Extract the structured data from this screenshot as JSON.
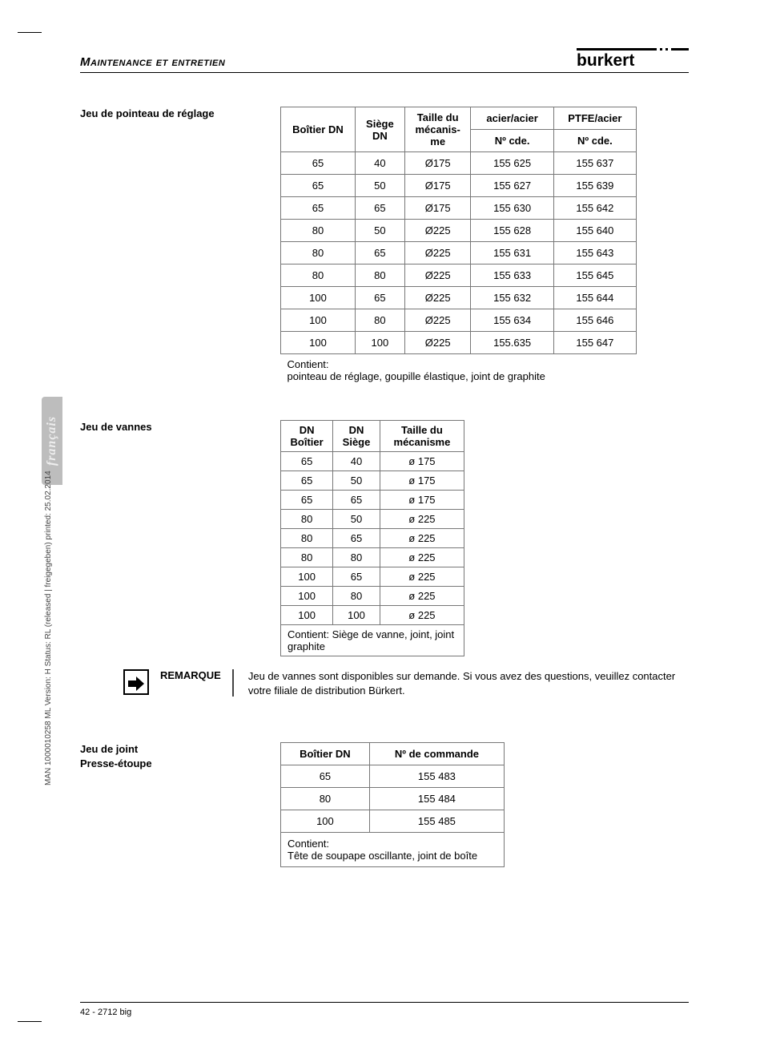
{
  "header": {
    "title": "Maintenance et entretien",
    "logo_text": "burkert"
  },
  "section1": {
    "label": "Jeu de pointeau de réglage",
    "headers_top": [
      "Boîtier DN",
      "Siège DN",
      "Taille du mécanis-me",
      "acier/acier",
      "PTFE/acier"
    ],
    "headers_sub": [
      "Nº cde.",
      "Nº cde."
    ],
    "rows": [
      [
        "65",
        "40",
        "Ø175",
        "155 625",
        "155 637"
      ],
      [
        "65",
        "50",
        "Ø175",
        "155 627",
        "155 639"
      ],
      [
        "65",
        "65",
        "Ø175",
        "155 630",
        "155 642"
      ],
      [
        "80",
        "50",
        "Ø225",
        "155 628",
        "155 640"
      ],
      [
        "80",
        "65",
        "Ø225",
        "155 631",
        "155 643"
      ],
      [
        "80",
        "80",
        "Ø225",
        "155 633",
        "155 645"
      ],
      [
        "100",
        "65",
        "Ø225",
        "155 632",
        "155 644"
      ],
      [
        "100",
        "80",
        "Ø225",
        "155 634",
        "155 646"
      ],
      [
        "100",
        "100",
        "Ø225",
        "155.635",
        "155 647"
      ]
    ],
    "footer_l1": "Contient:",
    "footer_l2": "pointeau de réglage, goupille élastique, joint de graphite"
  },
  "section2": {
    "label": "Jeu de vannes",
    "headers": [
      "DN Boîtier",
      "DN Siège",
      "Taille du mécanisme"
    ],
    "rows": [
      [
        "65",
        "40",
        "ø 175"
      ],
      [
        "65",
        "50",
        "ø 175"
      ],
      [
        "65",
        "65",
        "ø 175"
      ],
      [
        "80",
        "50",
        "ø 225"
      ],
      [
        "80",
        "65",
        "ø 225"
      ],
      [
        "80",
        "80",
        "ø 225"
      ],
      [
        "100",
        "65",
        "ø 225"
      ],
      [
        "100",
        "80",
        "ø 225"
      ],
      [
        "100",
        "100",
        "ø 225"
      ]
    ],
    "footer": "Contient: Siège de vanne, joint, joint graphite"
  },
  "remark": {
    "label": "REMARQUE",
    "text": "Jeu de vannes sont disponibles sur demande. Si vous avez des questions, veuillez contacter votre filiale de distribution Bürkert."
  },
  "section3": {
    "label_l1": "Jeu de joint",
    "label_l2": "Presse-étoupe",
    "headers": [
      "Boîtier DN",
      "Nº de commande"
    ],
    "rows": [
      [
        "65",
        "155 483"
      ],
      [
        "80",
        "155 484"
      ],
      [
        "100",
        "155 485"
      ]
    ],
    "footer_l1": "Contient:",
    "footer_l2": "Tête de soupape oscillante, joint de boîte"
  },
  "sidebar_rotated": "MAN 1000010258 ML Version: H  Status: RL (released | freigegeben) printed: 25.02.2014",
  "lang_tab": "français",
  "footer_text": "42  -  2712 big",
  "colors": {
    "text": "#000000",
    "border": "#777777",
    "tab_bg": "#bdbdbd",
    "tab_fg": "#eeeeee"
  }
}
